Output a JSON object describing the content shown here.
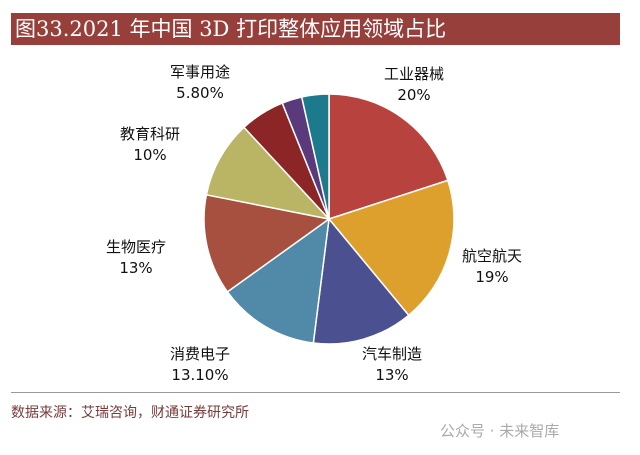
{
  "title": "图33.2021 年中国 3D 打印整体应用领域占比",
  "source": "数据来源：艾瑞咨询，财通证券研究所",
  "watermark": "公众号 · 未来智库",
  "chart_data": {
    "type": "pie",
    "title": "图33.2021 年中国 3D 打印整体应用领域占比",
    "start": "top, clockwise",
    "slices": [
      {
        "label": "工业器械",
        "value_label": "20%",
        "value": 20,
        "color": "#b8433e"
      },
      {
        "label": "航空航天",
        "value_label": "19%",
        "value": 19,
        "color": "#dea02c"
      },
      {
        "label": "汽车制造",
        "value_label": "13%",
        "value": 13,
        "color": "#4b5190"
      },
      {
        "label": "消费电子",
        "value_label": "13.10%",
        "value": 13.1,
        "color": "#5189a9"
      },
      {
        "label": "生物医疗",
        "value_label": "13%",
        "value": 13,
        "color": "#a8503f"
      },
      {
        "label": "教育科研",
        "value_label": "10%",
        "value": 10,
        "color": "#b9b565"
      },
      {
        "label": "军事用途",
        "value_label": "5.80%",
        "value": 5.8,
        "color": "#8c2526"
      },
      {
        "label": "",
        "value_label": "",
        "value": 2.6,
        "color": "#5b3a7c"
      },
      {
        "label": "",
        "value_label": "",
        "value": 3.5,
        "color": "#1d7a8d"
      }
    ]
  }
}
